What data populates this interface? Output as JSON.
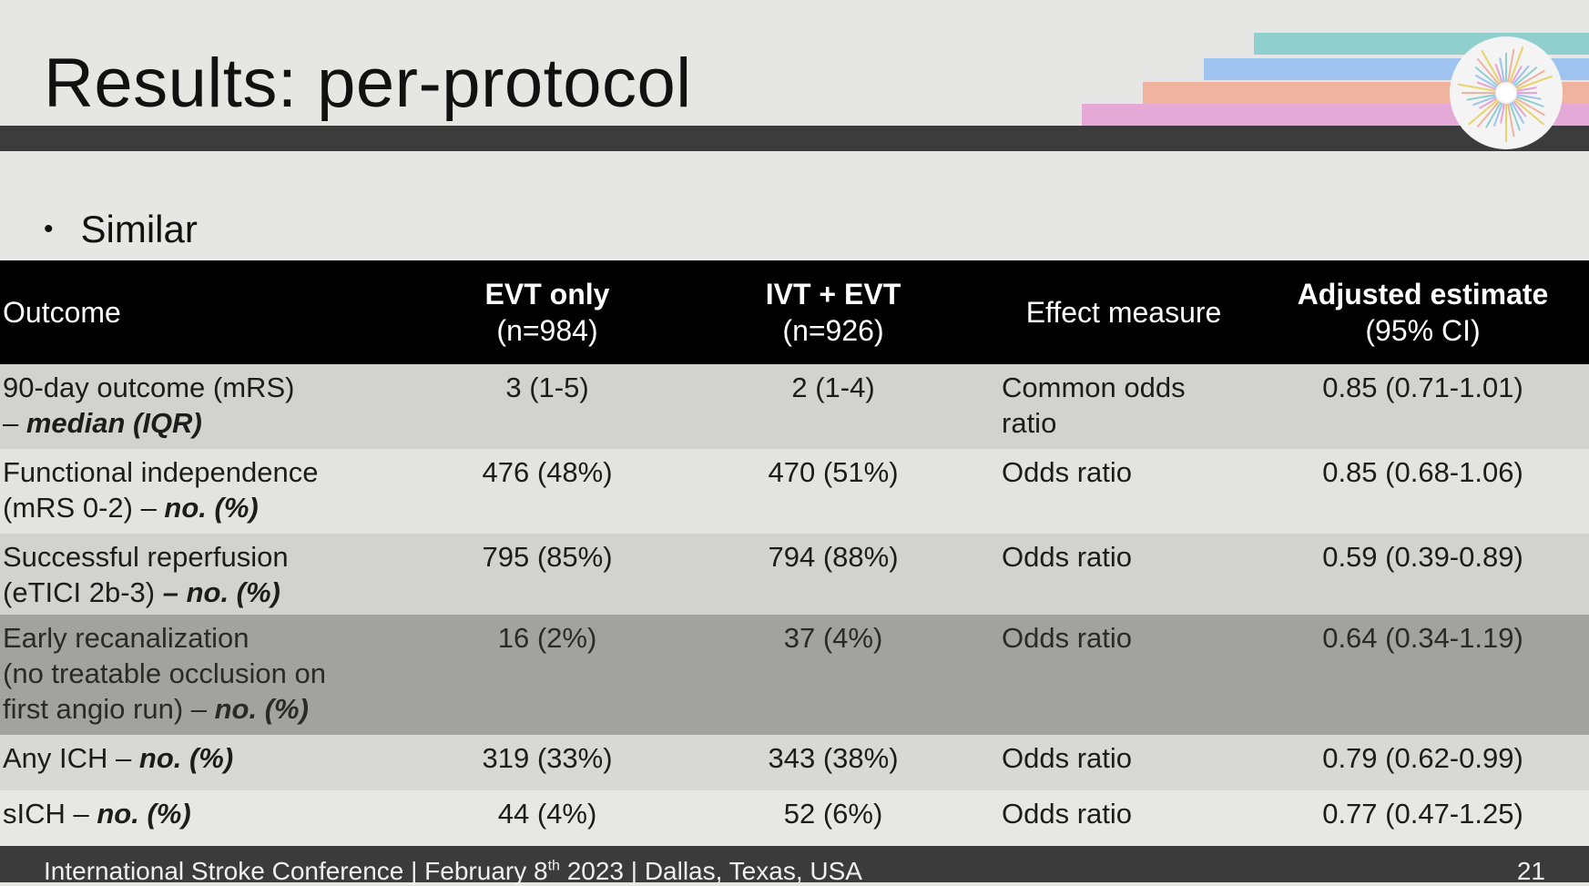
{
  "slide": {
    "title": "Results: per-protocol",
    "bullet": "Similar"
  },
  "table": {
    "headers": {
      "outcome": "Outcome",
      "evt_only": "EVT only",
      "evt_only_n": "(n=984)",
      "ivt_evt": "IVT + EVT",
      "ivt_evt_n": "(n=926)",
      "effect": "Effect measure",
      "adjusted": "Adjusted estimate",
      "adjusted_ci": "(95% CI)"
    },
    "rows": [
      {
        "outcome_lines": [
          "90-day outcome (mRS)",
          "– "
        ],
        "outcome_emph": "median (IQR)",
        "evt_only": "3 (1-5)",
        "ivt_evt": "2 (1-4)",
        "effect_lines": [
          "Common odds",
          "ratio"
        ],
        "adjusted": "0.85 (0.71-1.01)"
      },
      {
        "outcome_lines": [
          "Functional independence",
          "(mRS 0-2) – "
        ],
        "outcome_emph": "no. (%)",
        "evt_only": "476 (48%)",
        "ivt_evt": "470 (51%)",
        "effect_lines": [
          "Odds ratio"
        ],
        "adjusted": "0.85 (0.68-1.06)"
      },
      {
        "outcome_lines": [
          "Successful reperfusion",
          "(eTICI 2b-3) "
        ],
        "outcome_emph": "– no. (%)",
        "evt_only": "795 (85%)",
        "ivt_evt": "794 (88%)",
        "effect_lines": [
          "Odds ratio"
        ],
        "adjusted": "0.59 (0.39-0.89)"
      },
      {
        "outcome_lines": [
          "Early recanalization",
          "(no treatable occlusion on",
          "first angio run) – "
        ],
        "outcome_emph": "no. (%)",
        "evt_only": "16 (2%)",
        "ivt_evt": "37 (4%)",
        "effect_lines": [
          "Odds ratio"
        ],
        "adjusted": "0.64 (0.34-1.19)"
      },
      {
        "outcome_lines": [
          "Any ICH – "
        ],
        "outcome_emph": "no. (%)",
        "evt_only": "319 (33%)",
        "ivt_evt": "343 (38%)",
        "effect_lines": [
          "Odds ratio"
        ],
        "adjusted": "0.79 (0.62-0.99)"
      },
      {
        "outcome_lines": [
          "sICH – "
        ],
        "outcome_emph": "no. (%)",
        "evt_only": "44 (4%)",
        "ivt_evt": "52 (6%)",
        "effect_lines": [
          "Odds ratio"
        ],
        "adjusted": "0.77 (0.47-1.25)"
      }
    ]
  },
  "footer": {
    "text_before": "International Stroke Conference | February 8",
    "superscript": "th",
    "text_after": " 2023 | Dallas, Texas, USA",
    "page_number": "21"
  },
  "colors": {
    "header_bar": "#3c3c3c",
    "table_header": "#000000",
    "stripe_teal": "#8fd0cf",
    "stripe_blue": "#9ec3ee",
    "stripe_peach": "#f0b3a0",
    "stripe_pink": "#e4a9d6"
  },
  "icons": {
    "logo": "radial-burst-logo"
  }
}
